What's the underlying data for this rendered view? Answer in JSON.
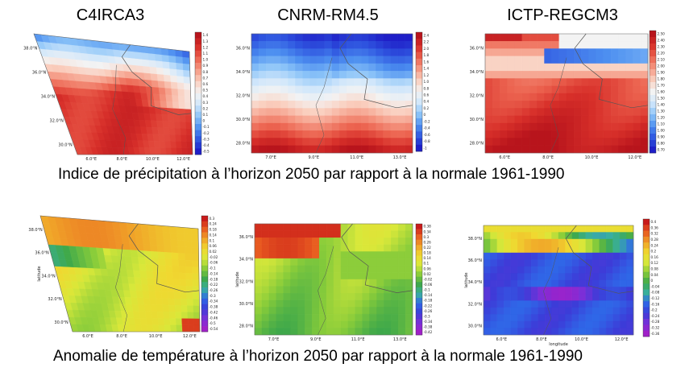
{
  "columns": [
    "C4IRCA3",
    "CNRM-RM4.5",
    "ICTP-REGCM3"
  ],
  "captions": {
    "precip": "Indice de précipitation à l’horizon 2050 par rapport à la normale 1961-1990",
    "temp": "Anomalie de température à l’horizon 2050 par rapport à la normale 1961-1990"
  },
  "colors": {
    "precip_scale": [
      "#1f1fc8",
      "#2f56e0",
      "#4d8ff0",
      "#8cc4f8",
      "#cfe6fb",
      "#f3f3f3",
      "#fad0c0",
      "#f59a85",
      "#ec6450",
      "#d8302a",
      "#b8141c"
    ],
    "temp_scale": [
      "#a020c8",
      "#7a30d8",
      "#3c3cd8",
      "#2f68e8",
      "#39b0a0",
      "#3ea84a",
      "#88cc3a",
      "#d8e83a",
      "#f0d830",
      "#f0a028",
      "#e85a20",
      "#c81a1a"
    ]
  },
  "chart_data": [
    {
      "type": "heatmap",
      "title": "C4IRCA3",
      "variable": "precip",
      "x_tick_labels": [
        "6.0°E",
        "8.0°E",
        "10.0°E",
        "12.0°E"
      ],
      "y_tick_labels": [
        "30.0°N",
        "32.0°N",
        "34.0°N",
        "36.0°N",
        "38.0°N"
      ],
      "colorbar_labels": [
        "1.4",
        "1.3",
        "1.2",
        "1.1",
        "1.0",
        "0.9",
        "0.8",
        "0.7",
        "0.6",
        "0.5",
        "0.4",
        "0.3",
        "0.2",
        "0.1",
        "0",
        "-0.1",
        "-0.2",
        "-0.3",
        "-0.4",
        "-0.5"
      ],
      "xlabel": "",
      "ylabel": ""
    },
    {
      "type": "heatmap",
      "title": "CNRM-RM4.5",
      "variable": "precip",
      "x_tick_labels": [
        "7.0°E",
        "9.0°E",
        "11.0°E",
        "13.0°E"
      ],
      "y_tick_labels": [
        "28.0°N",
        "30.0°N",
        "32.0°N",
        "34.0°N",
        "36.0°N"
      ],
      "colorbar_labels": [
        "2.4",
        "2.2",
        "2.0",
        "1.8",
        "1.6",
        "1.4",
        "1.2",
        "1.0",
        "0.8",
        "0.6",
        "0.4",
        "0.2",
        "0",
        "-0.2",
        "-0.4",
        "-0.6",
        "-0.8",
        "-1"
      ],
      "xlabel": "",
      "ylabel": ""
    },
    {
      "type": "heatmap",
      "title": "ICTP-REGCM3",
      "variable": "precip",
      "x_tick_labels": [
        "6.0°E",
        "8.0°E",
        "10.0°E",
        "12.0°E"
      ],
      "y_tick_labels": [
        "28.0°N",
        "30.0°N",
        "32.0°N",
        "34.0°N",
        "36.0°N"
      ],
      "colorbar_labels": [
        "2.50",
        "2.40",
        "2.30",
        "2.20",
        "2.10",
        "2.00",
        "1.90",
        "1.80",
        "1.70",
        "1.60",
        "1.50",
        "1.40",
        "1.30",
        "1.20",
        "1.10",
        "1.00",
        "0.90",
        "0.80",
        "0.70"
      ],
      "xlabel": "",
      "ylabel": ""
    },
    {
      "type": "heatmap",
      "title": "",
      "variable": "temp",
      "x_tick_labels": [
        "6.0°E",
        "8.0°E",
        "10.0°E",
        "12.0°E"
      ],
      "y_tick_labels": [
        "30.0°N",
        "32.0°N",
        "34.0°N",
        "36.0°N",
        "38.0°N"
      ],
      "colorbar_labels": [
        "0.3",
        "0.24",
        "0.18",
        "0.14",
        "0.1",
        "0.06",
        "0.02",
        "-0.02",
        "-0.06",
        "-0.1",
        "-0.14",
        "-0.18",
        "-0.22",
        "-0.26",
        "-0.3",
        "-0.34",
        "-0.38",
        "-0.42",
        "-0.46",
        "-0.5",
        "-0.54"
      ],
      "xlabel": "",
      "ylabel": "latitude"
    },
    {
      "type": "heatmap",
      "title": "",
      "variable": "temp",
      "x_tick_labels": [
        "7.0°E",
        "9.0°E",
        "11.0°E",
        "13.0°E"
      ],
      "y_tick_labels": [
        "28.0°N",
        "30.0°N",
        "32.0°N",
        "34.0°N",
        "36.0°N"
      ],
      "colorbar_labels": [
        "0.38",
        "0.34",
        "0.3",
        "0.26",
        "0.22",
        "0.18",
        "0.14",
        "0.1",
        "0.06",
        "0.02",
        "-0.02",
        "-0.06",
        "-0.1",
        "-0.14",
        "-0.18",
        "-0.22",
        "-0.26",
        "-0.3",
        "-0.34",
        "-0.38",
        "-0.42"
      ],
      "xlabel": "",
      "ylabel": "latitude"
    },
    {
      "type": "heatmap",
      "title": "",
      "variable": "temp",
      "x_tick_labels": [
        "6.0°E",
        "8.0°E",
        "10.0°E",
        "12.0°E"
      ],
      "y_tick_labels": [
        "30.0°N",
        "32.0°N",
        "34.0°N",
        "36.0°N",
        "38.0°N"
      ],
      "colorbar_labels": [
        "0.4",
        "0.36",
        "0.32",
        "0.28",
        "0.24",
        "0.2",
        "0.16",
        "0.12",
        "0.08",
        "0.04",
        "0",
        "-0.04",
        "-0.08",
        "-0.12",
        "-0.16",
        "-0.2",
        "-0.24",
        "-0.28",
        "-0.32",
        "-0.36"
      ],
      "xlabel": "longitude",
      "ylabel": "latitude"
    }
  ]
}
